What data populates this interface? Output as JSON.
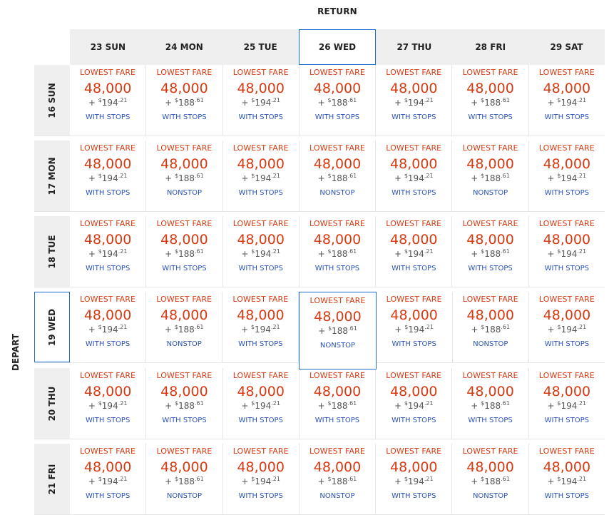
{
  "return_label": "RETURN",
  "depart_label": "DEPART",
  "selected": {
    "return_index": 3,
    "depart_index": 3
  },
  "colors": {
    "fare": "#d83a12",
    "stops": "#2a52b8",
    "selection": "#1a6fd0",
    "header_bg": "#efefef"
  },
  "return_dates": [
    "23 SUN",
    "24 MON",
    "25 TUE",
    "26 WED",
    "27 THU",
    "28 FRI",
    "29 SAT"
  ],
  "rows": [
    {
      "date": "16 SUN",
      "cells": [
        {
          "label": "LOWEST FARE",
          "miles": "48,000",
          "tax_prefix": "+ ",
          "currency": "$",
          "tax_whole": "194",
          "tax_cents": ".21",
          "stops": "WITH STOPS"
        },
        {
          "label": "LOWEST FARE",
          "miles": "48,000",
          "tax_prefix": "+ ",
          "currency": "$",
          "tax_whole": "188",
          "tax_cents": ".61",
          "stops": "WITH STOPS"
        },
        {
          "label": "LOWEST FARE",
          "miles": "48,000",
          "tax_prefix": "+ ",
          "currency": "$",
          "tax_whole": "194",
          "tax_cents": ".21",
          "stops": "WITH STOPS"
        },
        {
          "label": "LOWEST FARE",
          "miles": "48,000",
          "tax_prefix": "+ ",
          "currency": "$",
          "tax_whole": "188",
          "tax_cents": ".61",
          "stops": "WITH STOPS"
        },
        {
          "label": "LOWEST FARE",
          "miles": "48,000",
          "tax_prefix": "+ ",
          "currency": "$",
          "tax_whole": "194",
          "tax_cents": ".21",
          "stops": "WITH STOPS"
        },
        {
          "label": "LOWEST FARE",
          "miles": "48,000",
          "tax_prefix": "+ ",
          "currency": "$",
          "tax_whole": "188",
          "tax_cents": ".61",
          "stops": "WITH STOPS"
        },
        {
          "label": "LOWEST FARE",
          "miles": "48,000",
          "tax_prefix": "+ ",
          "currency": "$",
          "tax_whole": "194",
          "tax_cents": ".21",
          "stops": "WITH STOPS"
        }
      ]
    },
    {
      "date": "17 MON",
      "cells": [
        {
          "label": "LOWEST FARE",
          "miles": "48,000",
          "tax_prefix": "+ ",
          "currency": "$",
          "tax_whole": "194",
          "tax_cents": ".21",
          "stops": "WITH STOPS"
        },
        {
          "label": "LOWEST FARE",
          "miles": "48,000",
          "tax_prefix": "+ ",
          "currency": "$",
          "tax_whole": "188",
          "tax_cents": ".61",
          "stops": "NONSTOP"
        },
        {
          "label": "LOWEST FARE",
          "miles": "48,000",
          "tax_prefix": "+ ",
          "currency": "$",
          "tax_whole": "194",
          "tax_cents": ".21",
          "stops": "WITH STOPS"
        },
        {
          "label": "LOWEST FARE",
          "miles": "48,000",
          "tax_prefix": "+ ",
          "currency": "$",
          "tax_whole": "188",
          "tax_cents": ".61",
          "stops": "NONSTOP"
        },
        {
          "label": "LOWEST FARE",
          "miles": "48,000",
          "tax_prefix": "+ ",
          "currency": "$",
          "tax_whole": "194",
          "tax_cents": ".21",
          "stops": "WITH STOPS"
        },
        {
          "label": "LOWEST FARE",
          "miles": "48,000",
          "tax_prefix": "+ ",
          "currency": "$",
          "tax_whole": "188",
          "tax_cents": ".61",
          "stops": "NONSTOP"
        },
        {
          "label": "LOWEST FARE",
          "miles": "48,000",
          "tax_prefix": "+ ",
          "currency": "$",
          "tax_whole": "194",
          "tax_cents": ".21",
          "stops": "WITH STOPS"
        }
      ]
    },
    {
      "date": "18 TUE",
      "cells": [
        {
          "label": "LOWEST FARE",
          "miles": "48,000",
          "tax_prefix": "+ ",
          "currency": "$",
          "tax_whole": "194",
          "tax_cents": ".21",
          "stops": "WITH STOPS"
        },
        {
          "label": "LOWEST FARE",
          "miles": "48,000",
          "tax_prefix": "+ ",
          "currency": "$",
          "tax_whole": "188",
          "tax_cents": ".61",
          "stops": "WITH STOPS"
        },
        {
          "label": "LOWEST FARE",
          "miles": "48,000",
          "tax_prefix": "+ ",
          "currency": "$",
          "tax_whole": "194",
          "tax_cents": ".21",
          "stops": "WITH STOPS"
        },
        {
          "label": "LOWEST FARE",
          "miles": "48,000",
          "tax_prefix": "+ ",
          "currency": "$",
          "tax_whole": "188",
          "tax_cents": ".61",
          "stops": "WITH STOPS"
        },
        {
          "label": "LOWEST FARE",
          "miles": "48,000",
          "tax_prefix": "+ ",
          "currency": "$",
          "tax_whole": "194",
          "tax_cents": ".21",
          "stops": "WITH STOPS"
        },
        {
          "label": "LOWEST FARE",
          "miles": "48,000",
          "tax_prefix": "+ ",
          "currency": "$",
          "tax_whole": "188",
          "tax_cents": ".61",
          "stops": "WITH STOPS"
        },
        {
          "label": "LOWEST FARE",
          "miles": "48,000",
          "tax_prefix": "+ ",
          "currency": "$",
          "tax_whole": "194",
          "tax_cents": ".21",
          "stops": "WITH STOPS"
        }
      ]
    },
    {
      "date": "19 WED",
      "cells": [
        {
          "label": "LOWEST FARE",
          "miles": "48,000",
          "tax_prefix": "+ ",
          "currency": "$",
          "tax_whole": "194",
          "tax_cents": ".21",
          "stops": "WITH STOPS"
        },
        {
          "label": "LOWEST FARE",
          "miles": "48,000",
          "tax_prefix": "+ ",
          "currency": "$",
          "tax_whole": "188",
          "tax_cents": ".61",
          "stops": "NONSTOP"
        },
        {
          "label": "LOWEST FARE",
          "miles": "48,000",
          "tax_prefix": "+ ",
          "currency": "$",
          "tax_whole": "194",
          "tax_cents": ".21",
          "stops": "WITH STOPS"
        },
        {
          "label": "LOWEST FARE",
          "miles": "48,000",
          "tax_prefix": "+ ",
          "currency": "$",
          "tax_whole": "188",
          "tax_cents": ".61",
          "stops": "NONSTOP"
        },
        {
          "label": "LOWEST FARE",
          "miles": "48,000",
          "tax_prefix": "+ ",
          "currency": "$",
          "tax_whole": "194",
          "tax_cents": ".21",
          "stops": "WITH STOPS"
        },
        {
          "label": "LOWEST FARE",
          "miles": "48,000",
          "tax_prefix": "+ ",
          "currency": "$",
          "tax_whole": "188",
          "tax_cents": ".61",
          "stops": "NONSTOP"
        },
        {
          "label": "LOWEST FARE",
          "miles": "48,000",
          "tax_prefix": "+ ",
          "currency": "$",
          "tax_whole": "194",
          "tax_cents": ".21",
          "stops": "WITH STOPS"
        }
      ]
    },
    {
      "date": "20 THU",
      "cells": [
        {
          "label": "LOWEST FARE",
          "miles": "48,000",
          "tax_prefix": "+ ",
          "currency": "$",
          "tax_whole": "194",
          "tax_cents": ".21",
          "stops": "WITH STOPS"
        },
        {
          "label": "LOWEST FARE",
          "miles": "48,000",
          "tax_prefix": "+ ",
          "currency": "$",
          "tax_whole": "188",
          "tax_cents": ".61",
          "stops": "WITH STOPS"
        },
        {
          "label": "LOWEST FARE",
          "miles": "48,000",
          "tax_prefix": "+ ",
          "currency": "$",
          "tax_whole": "194",
          "tax_cents": ".21",
          "stops": "WITH STOPS"
        },
        {
          "label": "LOWEST FARE",
          "miles": "48,000",
          "tax_prefix": "+ ",
          "currency": "$",
          "tax_whole": "188",
          "tax_cents": ".61",
          "stops": "WITH STOPS"
        },
        {
          "label": "LOWEST FARE",
          "miles": "48,000",
          "tax_prefix": "+ ",
          "currency": "$",
          "tax_whole": "194",
          "tax_cents": ".21",
          "stops": "WITH STOPS"
        },
        {
          "label": "LOWEST FARE",
          "miles": "48,000",
          "tax_prefix": "+ ",
          "currency": "$",
          "tax_whole": "188",
          "tax_cents": ".61",
          "stops": "WITH STOPS"
        },
        {
          "label": "LOWEST FARE",
          "miles": "48,000",
          "tax_prefix": "+ ",
          "currency": "$",
          "tax_whole": "194",
          "tax_cents": ".21",
          "stops": "WITH STOPS"
        }
      ]
    },
    {
      "date": "21 FRI",
      "cells": [
        {
          "label": "LOWEST FARE",
          "miles": "48,000",
          "tax_prefix": "+ ",
          "currency": "$",
          "tax_whole": "194",
          "tax_cents": ".21",
          "stops": "WITH STOPS"
        },
        {
          "label": "LOWEST FARE",
          "miles": "48,000",
          "tax_prefix": "+ ",
          "currency": "$",
          "tax_whole": "188",
          "tax_cents": ".61",
          "stops": "NONSTOP"
        },
        {
          "label": "LOWEST FARE",
          "miles": "48,000",
          "tax_prefix": "+ ",
          "currency": "$",
          "tax_whole": "194",
          "tax_cents": ".21",
          "stops": "WITH STOPS"
        },
        {
          "label": "LOWEST FARE",
          "miles": "48,000",
          "tax_prefix": "+ ",
          "currency": "$",
          "tax_whole": "188",
          "tax_cents": ".61",
          "stops": "NONSTOP"
        },
        {
          "label": "LOWEST FARE",
          "miles": "48,000",
          "tax_prefix": "+ ",
          "currency": "$",
          "tax_whole": "194",
          "tax_cents": ".21",
          "stops": "WITH STOPS"
        },
        {
          "label": "LOWEST FARE",
          "miles": "48,000",
          "tax_prefix": "+ ",
          "currency": "$",
          "tax_whole": "188",
          "tax_cents": ".61",
          "stops": "NONSTOP"
        },
        {
          "label": "LOWEST FARE",
          "miles": "48,000",
          "tax_prefix": "+ ",
          "currency": "$",
          "tax_whole": "194",
          "tax_cents": ".21",
          "stops": "WITH STOPS"
        }
      ]
    }
  ]
}
